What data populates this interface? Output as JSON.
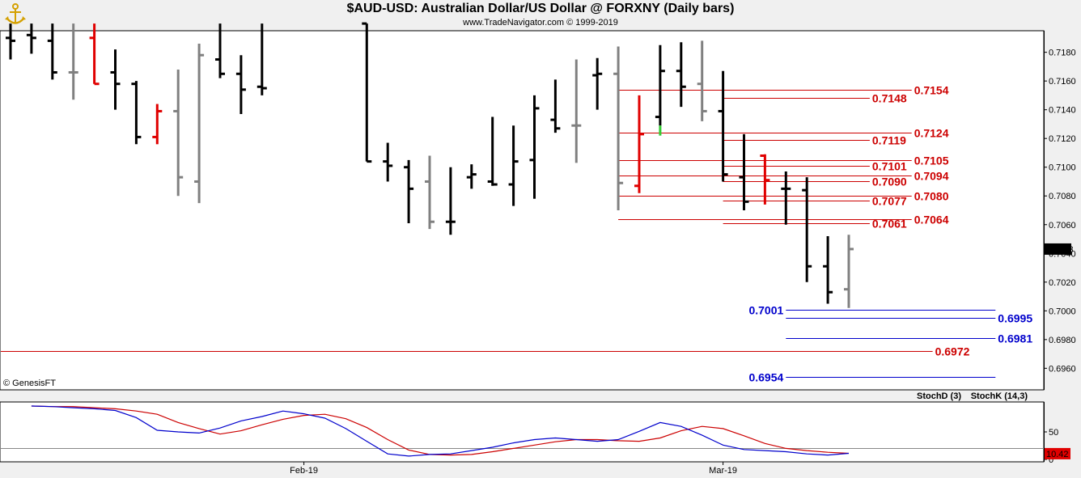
{
  "header": {
    "title": "$AUD-USD:  Australian Dollar/US Dollar @ FORXNY  (Daily bars)",
    "subtitle": "www.TradeNavigator.com © 1999-2019"
  },
  "colors": {
    "up": "#000000",
    "down": "#808080",
    "red": "#e00000",
    "green": "#33cc33",
    "blue": "#0000cc",
    "level_red": "#cc0000",
    "stoch_d": "#cc0000",
    "stoch_k": "#0000cc"
  },
  "chart_data": [
    {
      "type": "ohlc",
      "title": "$AUD-USD:  Australian Dollar/US Dollar @ FORXNY  (Daily bars)",
      "x_tick_labels": [
        {
          "label": "Feb-19",
          "index": 14
        },
        {
          "label": "Mar-19",
          "index": 34
        }
      ],
      "ylim": [
        0.6945,
        0.7195
      ],
      "y_ticks": [
        0.696,
        0.698,
        0.7,
        0.702,
        0.704,
        0.706,
        0.708,
        0.71,
        0.712,
        0.714,
        0.716,
        0.718
      ],
      "y_tick_labels": [
        "0.6960",
        "0.6980",
        "0.7000",
        "0.7020",
        "0.7040",
        "0.7060",
        "0.7080",
        "0.7100",
        "0.7120",
        "0.7140",
        "0.7160",
        "0.7180"
      ],
      "last_price": "0.7043",
      "copyright": "© GenesisFT",
      "bars": [
        {
          "i": 0,
          "o": 0.719,
          "h": 0.72,
          "l": 0.7175,
          "c": 0.7188,
          "color": "up"
        },
        {
          "i": 1,
          "o": 0.7192,
          "h": 0.72,
          "l": 0.7179,
          "c": 0.719,
          "color": "up"
        },
        {
          "i": 2,
          "o": 0.7188,
          "h": 0.72,
          "l": 0.7161,
          "c": 0.7166,
          "color": "up"
        },
        {
          "i": 3,
          "o": 0.7166,
          "h": 0.72,
          "l": 0.7147,
          "c": 0.7166,
          "color": "down"
        },
        {
          "i": 4,
          "o": 0.719,
          "h": 0.72,
          "l": 0.7158,
          "c": 0.7158,
          "color": "red"
        },
        {
          "i": 5,
          "o": 0.7166,
          "h": 0.7182,
          "l": 0.714,
          "c": 0.7158,
          "color": "up"
        },
        {
          "i": 6,
          "o": 0.7158,
          "h": 0.716,
          "l": 0.7116,
          "c": 0.7121,
          "color": "up"
        },
        {
          "i": 7,
          "o": 0.7121,
          "h": 0.7144,
          "l": 0.7116,
          "c": 0.7139,
          "color": "red"
        },
        {
          "i": 8,
          "o": 0.7139,
          "h": 0.7168,
          "l": 0.708,
          "c": 0.7093,
          "color": "down"
        },
        {
          "i": 9,
          "o": 0.709,
          "h": 0.7186,
          "l": 0.7075,
          "c": 0.7178,
          "color": "down"
        },
        {
          "i": 10,
          "o": 0.7175,
          "h": 0.72,
          "l": 0.7162,
          "c": 0.7165,
          "color": "up"
        },
        {
          "i": 11,
          "o": 0.7165,
          "h": 0.7178,
          "l": 0.7137,
          "c": 0.7154,
          "color": "up"
        },
        {
          "i": 12,
          "o": 0.7156,
          "h": 0.72,
          "l": 0.715,
          "c": 0.7155,
          "color": "up"
        },
        {
          "i": 17,
          "o": 0.72,
          "h": 0.72,
          "l": 0.7104,
          "c": 0.7104,
          "color": "up"
        },
        {
          "i": 18,
          "o": 0.7104,
          "h": 0.7117,
          "l": 0.709,
          "c": 0.7101,
          "color": "up"
        },
        {
          "i": 19,
          "o": 0.71,
          "h": 0.7105,
          "l": 0.7061,
          "c": 0.7085,
          "color": "up"
        },
        {
          "i": 20,
          "o": 0.709,
          "h": 0.7108,
          "l": 0.7057,
          "c": 0.7062,
          "color": "down"
        },
        {
          "i": 21,
          "o": 0.7062,
          "h": 0.71,
          "l": 0.7053,
          "c": 0.7062,
          "color": "up"
        },
        {
          "i": 22,
          "o": 0.7093,
          "h": 0.7102,
          "l": 0.7085,
          "c": 0.7095,
          "color": "up"
        },
        {
          "i": 23,
          "o": 0.709,
          "h": 0.7135,
          "l": 0.7087,
          "c": 0.7088,
          "color": "up"
        },
        {
          "i": 24,
          "o": 0.7088,
          "h": 0.7129,
          "l": 0.7073,
          "c": 0.7104,
          "color": "up"
        },
        {
          "i": 25,
          "o": 0.7105,
          "h": 0.715,
          "l": 0.7078,
          "c": 0.7141,
          "color": "up"
        },
        {
          "i": 26,
          "o": 0.7133,
          "h": 0.7161,
          "l": 0.7124,
          "c": 0.7127,
          "color": "up"
        },
        {
          "i": 27,
          "o": 0.7129,
          "h": 0.7175,
          "l": 0.7103,
          "c": 0.7129,
          "color": "down"
        },
        {
          "i": 28,
          "o": 0.7164,
          "h": 0.7176,
          "l": 0.714,
          "c": 0.7165,
          "color": "up"
        },
        {
          "i": 29,
          "o": 0.7165,
          "h": 0.7184,
          "l": 0.707,
          "c": 0.7089,
          "color": "down"
        },
        {
          "i": 30,
          "o": 0.7087,
          "h": 0.715,
          "l": 0.7082,
          "c": 0.7123,
          "color": "red"
        },
        {
          "i": 31,
          "o": 0.7135,
          "h": 0.7185,
          "l": 0.7129,
          "c": 0.7167,
          "color": "up",
          "green_tail": [
            0.7122,
            0.7129
          ]
        },
        {
          "i": 32,
          "o": 0.7167,
          "h": 0.7187,
          "l": 0.7142,
          "c": 0.7156,
          "color": "up"
        },
        {
          "i": 33,
          "o": 0.7158,
          "h": 0.7188,
          "l": 0.7132,
          "c": 0.7139,
          "color": "down"
        },
        {
          "i": 34,
          "o": 0.7139,
          "h": 0.7167,
          "l": 0.709,
          "c": 0.7095,
          "color": "up"
        },
        {
          "i": 35,
          "o": 0.7093,
          "h": 0.7123,
          "l": 0.707,
          "c": 0.7076,
          "color": "up"
        },
        {
          "i": 36,
          "o": 0.7108,
          "h": 0.7109,
          "l": 0.7074,
          "c": 0.7091,
          "color": "red"
        },
        {
          "i": 37,
          "o": 0.7085,
          "h": 0.7097,
          "l": 0.706,
          "c": 0.7085,
          "color": "up"
        },
        {
          "i": 38,
          "o": 0.7084,
          "h": 0.7093,
          "l": 0.702,
          "c": 0.7031,
          "color": "up"
        },
        {
          "i": 39,
          "o": 0.7031,
          "h": 0.7052,
          "l": 0.7005,
          "c": 0.7013,
          "color": "up"
        },
        {
          "i": 40,
          "o": 0.7015,
          "h": 0.7053,
          "l": 0.7002,
          "c": 0.7043,
          "color": "down"
        }
      ],
      "levels": [
        {
          "label": "0.7154",
          "value": 0.7154,
          "color": "red",
          "line_from": 29,
          "line_to": 43,
          "label_side": "right"
        },
        {
          "label": "0.7148",
          "value": 0.7148,
          "color": "red",
          "line_from": 34,
          "line_to": 41,
          "label_side": "right"
        },
        {
          "label": "0.7124",
          "value": 0.7124,
          "color": "red",
          "line_from": 29,
          "line_to": 43,
          "label_side": "right"
        },
        {
          "label": "0.7119",
          "value": 0.7119,
          "color": "red",
          "line_from": 34,
          "line_to": 41,
          "label_side": "right"
        },
        {
          "label": "0.7105",
          "value": 0.7105,
          "color": "red",
          "line_from": 29,
          "line_to": 43,
          "label_side": "right"
        },
        {
          "label": "0.7101",
          "value": 0.7101,
          "color": "red",
          "line_from": 34,
          "line_to": 41,
          "label_side": "right"
        },
        {
          "label": "0.7094",
          "value": 0.7094,
          "color": "red",
          "line_from": 29,
          "line_to": 43,
          "label_side": "right"
        },
        {
          "label": "0.7090",
          "value": 0.709,
          "color": "red",
          "line_from": 34,
          "line_to": 41,
          "label_side": "right"
        },
        {
          "label": "0.7080",
          "value": 0.708,
          "color": "red",
          "line_from": 29,
          "line_to": 43,
          "label_side": "right"
        },
        {
          "label": "0.7077",
          "value": 0.7077,
          "color": "red",
          "line_from": 34,
          "line_to": 41,
          "label_side": "right"
        },
        {
          "label": "0.7064",
          "value": 0.7064,
          "color": "red",
          "line_from": 29,
          "line_to": 43,
          "label_side": "right"
        },
        {
          "label": "0.7061",
          "value": 0.7061,
          "color": "red",
          "line_from": 34,
          "line_to": 41,
          "label_side": "right"
        },
        {
          "label": "0.7001",
          "value": 0.7001,
          "color": "blue",
          "line_from": 37,
          "line_to": 47,
          "label_side": "left"
        },
        {
          "label": "0.6995",
          "value": 0.6995,
          "color": "blue",
          "line_from": 37,
          "line_to": 47,
          "label_side": "right"
        },
        {
          "label": "0.6981",
          "value": 0.6981,
          "color": "blue",
          "line_from": 37,
          "line_to": 47,
          "label_side": "right"
        },
        {
          "label": "0.6972",
          "value": 0.6972,
          "color": "red",
          "line_from": -1,
          "line_to": 44,
          "label_side": "right"
        },
        {
          "label": "0.6954",
          "value": 0.6954,
          "color": "blue",
          "line_from": 37,
          "line_to": 47,
          "label_side": "left"
        }
      ]
    },
    {
      "type": "line",
      "ylim": [
        0,
        100
      ],
      "y_ticks": [
        50,
        0
      ],
      "y_tick_labels": [
        "50",
        "0"
      ],
      "last_value": "10.42",
      "series": [
        {
          "name": "StochD (3)",
          "color": "stoch_d",
          "points": [
            [
              1,
              97
            ],
            [
              2,
              96
            ],
            [
              3,
              96
            ],
            [
              4,
              94
            ],
            [
              5,
              92
            ],
            [
              6,
              88
            ],
            [
              7,
              82
            ],
            [
              8,
              67
            ],
            [
              9,
              56
            ],
            [
              10,
              46
            ],
            [
              11,
              52
            ],
            [
              12,
              63
            ],
            [
              13,
              73
            ],
            [
              14,
              80
            ],
            [
              15,
              82
            ],
            [
              16,
              74
            ],
            [
              17,
              58
            ],
            [
              18,
              36
            ],
            [
              19,
              17
            ],
            [
              20,
              9
            ],
            [
              21,
              8
            ],
            [
              22,
              9
            ],
            [
              23,
              14
            ],
            [
              24,
              20
            ],
            [
              25,
              26
            ],
            [
              26,
              32
            ],
            [
              27,
              36
            ],
            [
              28,
              36
            ],
            [
              29,
              34
            ],
            [
              30,
              33
            ],
            [
              31,
              39
            ],
            [
              32,
              52
            ],
            [
              33,
              60
            ],
            [
              34,
              56
            ],
            [
              35,
              43
            ],
            [
              36,
              29
            ],
            [
              37,
              20
            ],
            [
              38,
              16
            ],
            [
              39,
              13
            ],
            [
              40,
              11
            ]
          ]
        },
        {
          "name": "StochK (14,3)",
          "color": "stoch_k",
          "points": [
            [
              1,
              97
            ],
            [
              2,
              96
            ],
            [
              3,
              94
            ],
            [
              4,
              92
            ],
            [
              5,
              89
            ],
            [
              6,
              76
            ],
            [
              7,
              53
            ],
            [
              8,
              50
            ],
            [
              9,
              48
            ],
            [
              10,
              57
            ],
            [
              11,
              70
            ],
            [
              12,
              78
            ],
            [
              13,
              88
            ],
            [
              14,
              83
            ],
            [
              15,
              75
            ],
            [
              16,
              56
            ],
            [
              17,
              33
            ],
            [
              18,
              10
            ],
            [
              19,
              6
            ],
            [
              20,
              9
            ],
            [
              21,
              10
            ],
            [
              22,
              16
            ],
            [
              23,
              22
            ],
            [
              24,
              30
            ],
            [
              25,
              36
            ],
            [
              26,
              39
            ],
            [
              27,
              36
            ],
            [
              28,
              33
            ],
            [
              29,
              36
            ],
            [
              30,
              51
            ],
            [
              31,
              67
            ],
            [
              32,
              60
            ],
            [
              33,
              44
            ],
            [
              34,
              26
            ],
            [
              35,
              18
            ],
            [
              36,
              16
            ],
            [
              37,
              14
            ],
            [
              38,
              10
            ],
            [
              39,
              8
            ],
            [
              40,
              11
            ]
          ]
        }
      ]
    }
  ]
}
